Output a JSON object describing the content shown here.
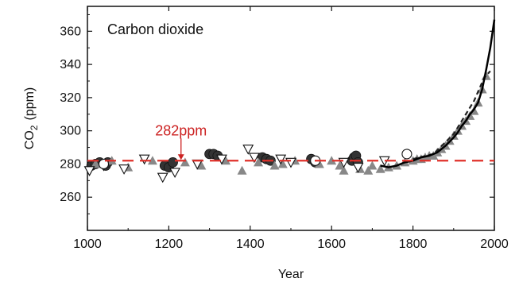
{
  "chart_data": {
    "type": "scatter",
    "title": "Carbon dioxide",
    "xlabel": "Year",
    "ylabel_main": "CO",
    "ylabel_sub": "2",
    "ylabel_unit": "(ppm)",
    "xlim": [
      1000,
      2000
    ],
    "ylim": [
      240,
      375
    ],
    "xticks": [
      1000,
      1200,
      1400,
      1600,
      1800,
      2000
    ],
    "yticks": [
      260,
      280,
      300,
      320,
      340,
      360
    ],
    "grid": false,
    "reference_line": {
      "y": 282,
      "color": "#e0302a",
      "style": "dashed"
    },
    "annotation": {
      "text": "282ppm",
      "x": 1230,
      "y": 282,
      "color": "#cc2222"
    },
    "colors": {
      "series_a": "#333333",
      "series_b": "#888888",
      "series_c": "#111111",
      "curve": "#000000",
      "dashed_curve": "#222222"
    },
    "series": [
      {
        "marker": "filled-circle",
        "points": [
          [
            1010,
            279
          ],
          [
            1020,
            280
          ],
          [
            1030,
            281
          ],
          [
            1045,
            279
          ],
          [
            1050,
            281
          ],
          [
            1190,
            279
          ],
          [
            1200,
            278
          ],
          [
            1210,
            281
          ],
          [
            1300,
            286
          ],
          [
            1310,
            286
          ],
          [
            1320,
            285
          ],
          [
            1430,
            284
          ],
          [
            1440,
            283
          ],
          [
            1450,
            282
          ],
          [
            1550,
            283
          ],
          [
            1560,
            281
          ],
          [
            1650,
            282
          ],
          [
            1655,
            284
          ],
          [
            1660,
            285
          ],
          [
            1665,
            281
          ]
        ]
      },
      {
        "marker": "filled-triangle",
        "points": [
          [
            1020,
            280
          ],
          [
            1060,
            282
          ],
          [
            1100,
            278
          ],
          [
            1160,
            282
          ],
          [
            1240,
            281
          ],
          [
            1280,
            279
          ],
          [
            1340,
            282
          ],
          [
            1380,
            276
          ],
          [
            1420,
            281
          ],
          [
            1460,
            279
          ],
          [
            1480,
            280
          ],
          [
            1510,
            282
          ],
          [
            1570,
            280
          ],
          [
            1600,
            282
          ],
          [
            1620,
            279
          ],
          [
            1630,
            276
          ],
          [
            1670,
            277
          ],
          [
            1690,
            276
          ],
          [
            1700,
            279
          ],
          [
            1720,
            277
          ],
          [
            1740,
            278
          ],
          [
            1760,
            279
          ],
          [
            1780,
            281
          ],
          [
            1800,
            282
          ],
          [
            1810,
            283
          ],
          [
            1820,
            283
          ],
          [
            1830,
            284
          ],
          [
            1840,
            285
          ],
          [
            1850,
            285
          ],
          [
            1860,
            287
          ],
          [
            1870,
            289
          ],
          [
            1880,
            291
          ],
          [
            1890,
            294
          ],
          [
            1900,
            297
          ],
          [
            1910,
            300
          ],
          [
            1920,
            303
          ],
          [
            1930,
            306
          ],
          [
            1940,
            309
          ],
          [
            1950,
            312
          ],
          [
            1960,
            317
          ],
          [
            1970,
            325
          ],
          [
            1980,
            333
          ]
        ]
      },
      {
        "marker": "open-triangle-down",
        "points": [
          [
            1005,
            276
          ],
          [
            1040,
            279
          ],
          [
            1090,
            277
          ],
          [
            1140,
            283
          ],
          [
            1185,
            272
          ],
          [
            1215,
            275
          ],
          [
            1270,
            280
          ],
          [
            1330,
            283
          ],
          [
            1395,
            289
          ],
          [
            1410,
            284
          ],
          [
            1475,
            283
          ],
          [
            1500,
            281
          ],
          [
            1630,
            281
          ],
          [
            1665,
            278
          ],
          [
            1730,
            282
          ]
        ]
      },
      {
        "marker": "open-circle",
        "points": [
          [
            1040,
            280
          ],
          [
            1560,
            282
          ],
          [
            1785,
            286
          ]
        ]
      }
    ],
    "curve": [
      [
        1720,
        279
      ],
      [
        1740,
        278
      ],
      [
        1760,
        279
      ],
      [
        1780,
        281
      ],
      [
        1800,
        282
      ],
      [
        1820,
        284
      ],
      [
        1840,
        285
      ],
      [
        1860,
        287
      ],
      [
        1880,
        291
      ],
      [
        1900,
        296
      ],
      [
        1910,
        299
      ],
      [
        1920,
        303
      ],
      [
        1930,
        306
      ],
      [
        1940,
        310
      ],
      [
        1950,
        313
      ],
      [
        1960,
        317
      ],
      [
        1970,
        325
      ],
      [
        1980,
        337
      ],
      [
        1990,
        350
      ],
      [
        2000,
        367
      ]
    ],
    "dashed_curve": [
      [
        1800,
        283
      ],
      [
        1850,
        286
      ],
      [
        1900,
        298
      ],
      [
        1950,
        318
      ],
      [
        1975,
        332
      ],
      [
        1990,
        336
      ]
    ]
  }
}
